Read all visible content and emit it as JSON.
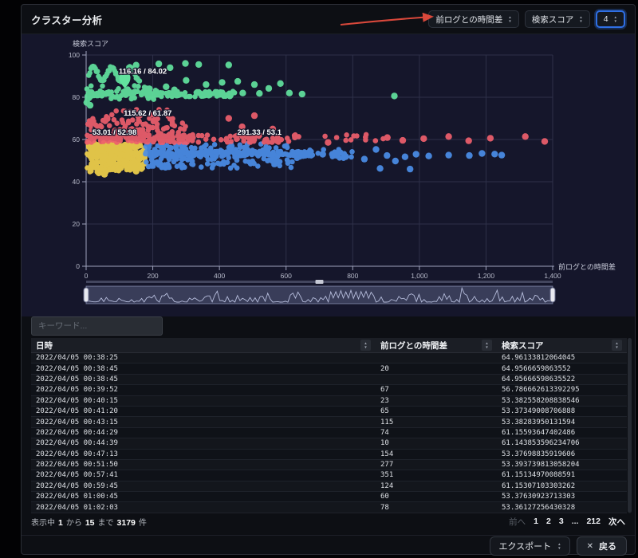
{
  "header": {
    "title": "クラスター分析",
    "x_select": "前ログとの時間差",
    "y_select": "検索スコア",
    "count_select": "4"
  },
  "icons": {
    "up": "▲",
    "down": "▼",
    "close": "✕"
  },
  "palette": {
    "accent_blue": "#2f6fe4",
    "arrow_red": "#d9483b",
    "chart_bg": "#15162b",
    "panel_bg": "#0d0f14"
  },
  "search": {
    "placeholder": "キーワード..."
  },
  "chart_data": {
    "type": "scatter",
    "xlabel": "前ログとの時間差",
    "ylabel": "検索スコア",
    "xlim": [
      0,
      1400
    ],
    "ylim": [
      0,
      100
    ],
    "grid": true,
    "xticks": [
      {
        "v": 0,
        "label": "0"
      },
      {
        "v": 200,
        "label": "200"
      },
      {
        "v": 400,
        "label": "400"
      },
      {
        "v": 600,
        "label": "600"
      },
      {
        "v": 800,
        "label": "800"
      },
      {
        "v": 1000,
        "label": "1,000"
      },
      {
        "v": 1200,
        "label": "1,200"
      },
      {
        "v": 1400,
        "label": "1,400"
      }
    ],
    "yticks": [
      {
        "v": 0,
        "label": "0"
      },
      {
        "v": 20,
        "label": "20"
      },
      {
        "v": 40,
        "label": "40"
      },
      {
        "v": 60,
        "label": "60"
      },
      {
        "v": 80,
        "label": "80"
      },
      {
        "v": 100,
        "label": "100"
      }
    ],
    "clusters": [
      {
        "name": "cluster-yellow",
        "color": "#f2d24b",
        "centroid": [
          53.01,
          52.98
        ],
        "centroid_label": "53.01 / 52.98",
        "label_pos": [
          85,
          62.2
        ],
        "bands": [
          {
            "x": [
              2,
              178
            ],
            "y": [
              45.5,
              53.0
            ],
            "count": 170
          },
          {
            "x": [
              2,
              178
            ],
            "y": [
              52.0,
              58.5
            ],
            "count": 170
          },
          {
            "x": [
              10,
              120
            ],
            "y": [
              44.5,
              46.5
            ],
            "count": 15
          }
        ],
        "points": [
          [
            55,
            43.5
          ],
          [
            38,
            44.2
          ],
          [
            150,
            45.0
          ]
        ]
      },
      {
        "name": "cluster-blue",
        "color": "#4b8ee8",
        "centroid": [
          291.33,
          53.1
        ],
        "centroid_label": "291.33 / 53.1",
        "label_pos": [
          520,
          62.2
        ],
        "bands": [
          {
            "x": [
              178,
              680
            ],
            "y": [
              52.2,
              54.4
            ],
            "count": 175
          },
          {
            "x": [
              178,
              620
            ],
            "y": [
              46.5,
              52.5
            ],
            "count": 110
          },
          {
            "x": [
              178,
              620
            ],
            "y": [
              54.0,
              58.0
            ],
            "count": 70
          },
          {
            "x": [
              620,
              800
            ],
            "y": [
              50.5,
              55.5
            ],
            "count": 22
          }
        ],
        "points": [
          [
            710,
            53
          ],
          [
            739,
            53
          ],
          [
            762,
            53.8
          ],
          [
            779,
            51.9
          ],
          [
            835,
            50.7
          ],
          [
            870,
            55.3
          ],
          [
            882,
            46.3
          ],
          [
            903,
            52.4
          ],
          [
            928,
            49.8
          ],
          [
            957,
            51.8
          ],
          [
            972,
            46
          ],
          [
            990,
            53
          ],
          [
            1028,
            52.2
          ],
          [
            1088,
            52.6
          ],
          [
            1150,
            52.4
          ],
          [
            1188,
            53.4
          ],
          [
            1226,
            53.1
          ],
          [
            1247,
            52.6
          ]
        ]
      },
      {
        "name": "cluster-red",
        "color": "#ef5f6d",
        "centroid": [
          115.62,
          61.87
        ],
        "centroid_label": "115.62 / 61.87",
        "label_pos": [
          185,
          71.3
        ],
        "bands": [
          {
            "x": [
              2,
              330
            ],
            "y": [
              58.6,
              62.3
            ],
            "count": 160
          },
          {
            "x": [
              2,
              300
            ],
            "y": [
              62.0,
              70.0
            ],
            "count": 80
          },
          {
            "x": [
              10,
              260
            ],
            "y": [
              69.0,
              74.5
            ],
            "count": 22
          },
          {
            "x": [
              330,
              640
            ],
            "y": [
              58.6,
              62.3
            ],
            "count": 55
          },
          {
            "x": [
              640,
              900
            ],
            "y": [
              59.0,
              62.5
            ],
            "count": 12
          }
        ],
        "points": [
          [
            505,
            71.3
          ],
          [
            560,
            65
          ],
          [
            726,
            58.6
          ],
          [
            904,
            60.9
          ],
          [
            950,
            59.6
          ],
          [
            1013,
            60.4
          ],
          [
            1088,
            61.4
          ],
          [
            1148,
            59.4
          ],
          [
            1213,
            60.6
          ],
          [
            1318,
            61.4
          ],
          [
            1376,
            59.1
          ],
          [
            428,
            70
          ],
          [
            468,
            66
          ]
        ]
      },
      {
        "name": "cluster-green",
        "color": "#62e39e",
        "centroid": [
          116.16,
          84.02
        ],
        "centroid_label": "116.16 / 84.02",
        "label_pos": [
          170,
          91.2
        ],
        "pin": [
          116.16,
          84.02
        ],
        "bands": [
          {
            "x": [
              2,
              450
            ],
            "y": [
              80.3,
              82.8
            ],
            "count": 150
          },
          {
            "x": [
              2,
              210
            ],
            "y": [
              79.0,
              85.5
            ],
            "count": 45
          },
          {
            "type": "wave",
            "x": [
              8,
              160
            ],
            "base": 91,
            "amp": 3.1,
            "period": 55,
            "jitter": 1.6,
            "count": 48
          }
        ],
        "points": [
          [
            150,
            95.2
          ],
          [
            218,
            95.8
          ],
          [
            252,
            94
          ],
          [
            298,
            96
          ],
          [
            338,
            95.5
          ],
          [
            428,
            95.3
          ],
          [
            300,
            88
          ],
          [
            360,
            86
          ],
          [
            408,
            87
          ],
          [
            455,
            87.5
          ],
          [
            505,
            86
          ],
          [
            548,
            84.2
          ],
          [
            583,
            86.5
          ],
          [
            648,
            81.5
          ],
          [
            925,
            80.6
          ],
          [
            2,
            77.5
          ],
          [
            12,
            76.2
          ],
          [
            98,
            88.5
          ],
          [
            190,
            84
          ],
          [
            240,
            85
          ],
          [
            265,
            83.5
          ],
          [
            470,
            82
          ],
          [
            520,
            81.8
          ],
          [
            610,
            82
          ]
        ]
      }
    ],
    "navigator": {
      "waveform_color": "#b6bddc",
      "brush_fill": "rgba(142,152,196,0.30)"
    }
  },
  "table": {
    "columns": [
      "日時",
      "前ログとの時間差",
      "検索スコア"
    ],
    "rows": [
      [
        "2022/04/05 00:38:25",
        "",
        "64.96133812064045"
      ],
      [
        "2022/04/05 00:38:45",
        "20",
        "64.9566659863552"
      ],
      [
        "2022/04/05 00:38:45",
        "",
        "64.95666598635522"
      ],
      [
        "2022/04/05 00:39:52",
        "67",
        "56.786662613392295"
      ],
      [
        "2022/04/05 00:40:15",
        "23",
        "53.382558208838546"
      ],
      [
        "2022/04/05 00:41:20",
        "65",
        "53.37349008706888"
      ],
      [
        "2022/04/05 00:43:15",
        "115",
        "53.38283950131594"
      ],
      [
        "2022/04/05 00:44:29",
        "74",
        "61.15593647402486"
      ],
      [
        "2022/04/05 00:44:39",
        "10",
        "61.143853596234706"
      ],
      [
        "2022/04/05 00:47:13",
        "154",
        "53.37698835919606"
      ],
      [
        "2022/04/05 00:51:50",
        "277",
        "53.393739813058204"
      ],
      [
        "2022/04/05 00:57:41",
        "351",
        "61.15134970088591"
      ],
      [
        "2022/04/05 00:59:45",
        "124",
        "61.15307103303262"
      ],
      [
        "2022/04/05 01:00:45",
        "60",
        "53.37630923713303"
      ],
      [
        "2022/04/05 01:02:03",
        "78",
        "53.36127256430328"
      ]
    ]
  },
  "table_footer": {
    "showing": "表示中",
    "from": "1",
    "kara": "から",
    "to": "15",
    "made": "まで",
    "total": "3179",
    "unit": "件"
  },
  "pagination": {
    "prev": "前へ",
    "pages": [
      "1",
      "2",
      "3",
      "...",
      "212"
    ],
    "next": "次へ"
  },
  "actions": {
    "export": "エクスポート",
    "back": "戻る"
  }
}
